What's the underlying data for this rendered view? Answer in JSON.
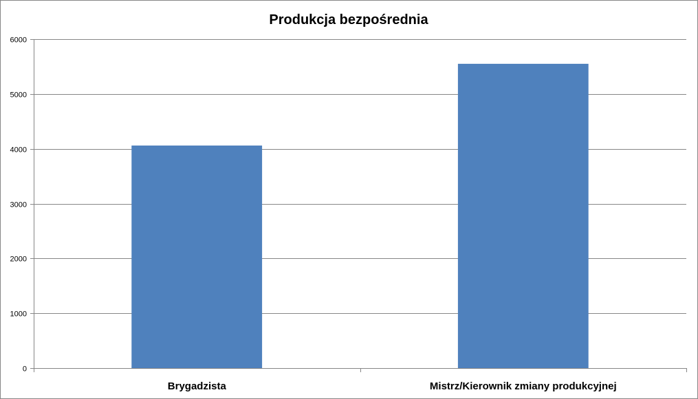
{
  "chart_data": {
    "type": "bar",
    "title": "Produkcja bezpośrednia",
    "xlabel": "",
    "ylabel": "",
    "categories": [
      "Brygadzista",
      "Mistrz/Kierownik zmiany produkcyjnej"
    ],
    "values": [
      4060,
      5550
    ],
    "ylim": [
      0,
      6000
    ],
    "yticks": [
      0,
      1000,
      2000,
      3000,
      4000,
      5000,
      6000
    ],
    "grid": true,
    "legend": "none",
    "bar_color": "#4F81BD",
    "gridline_color": "#868686"
  }
}
